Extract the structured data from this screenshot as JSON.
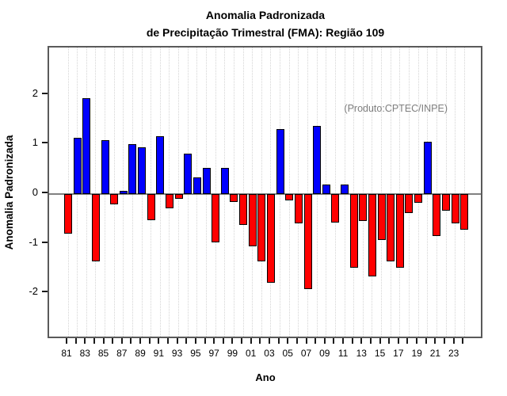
{
  "chart_data": {
    "type": "bar",
    "title": "Anomalia Padronizada",
    "subtitle": "de Precipitação Trimestral (FMA): Região 109",
    "xlabel": "Ano",
    "ylabel": "Anomalia Padronizada",
    "annotation": "(Produto:CPTEC/INPE)",
    "years": [
      1981,
      1982,
      1983,
      1984,
      1985,
      1986,
      1987,
      1988,
      1989,
      1990,
      1991,
      1992,
      1993,
      1994,
      1995,
      1996,
      1997,
      1998,
      1999,
      2000,
      2001,
      2002,
      2003,
      2004,
      2005,
      2006,
      2007,
      2008,
      2009,
      2010,
      2011,
      2012,
      2013,
      2014,
      2015,
      2016,
      2017,
      2018,
      2019,
      2020,
      2021,
      2022,
      2023,
      2024
    ],
    "values": [
      -0.79,
      1.14,
      1.93,
      -1.36,
      1.09,
      -0.2,
      0.07,
      1.01,
      0.94,
      -0.53,
      1.17,
      -0.28,
      -0.09,
      0.81,
      0.34,
      0.53,
      -0.98,
      0.52,
      -0.16,
      -0.62,
      -1.05,
      -1.36,
      -1.79,
      1.31,
      -0.13,
      -0.59,
      -1.91,
      1.37,
      0.19,
      -0.57,
      0.19,
      -1.49,
      -0.55,
      -1.66,
      -0.92,
      -1.35,
      -1.49,
      -0.38,
      -0.18,
      1.06,
      -0.85,
      -0.33,
      -0.59,
      -0.72
    ],
    "xtick_labels": [
      "81",
      "83",
      "85",
      "87",
      "89",
      "91",
      "93",
      "95",
      "97",
      "99",
      "01",
      "03",
      "05",
      "07",
      "09",
      "11",
      "13",
      "15",
      "17",
      "19",
      "21",
      "23"
    ],
    "yticks": [
      2,
      1,
      0,
      -1,
      -2
    ],
    "ylim": [
      -3,
      3
    ],
    "grid": "dotted-vertical-per-year",
    "legend": "none",
    "colors": {
      "positive_bar": "#0000ff",
      "negative_bar": "#ff0000",
      "bar_border": "#000000",
      "zero_line": "#808080",
      "annotation_text": "#7e7e7e",
      "plot_border": "#5a5a5a"
    }
  }
}
